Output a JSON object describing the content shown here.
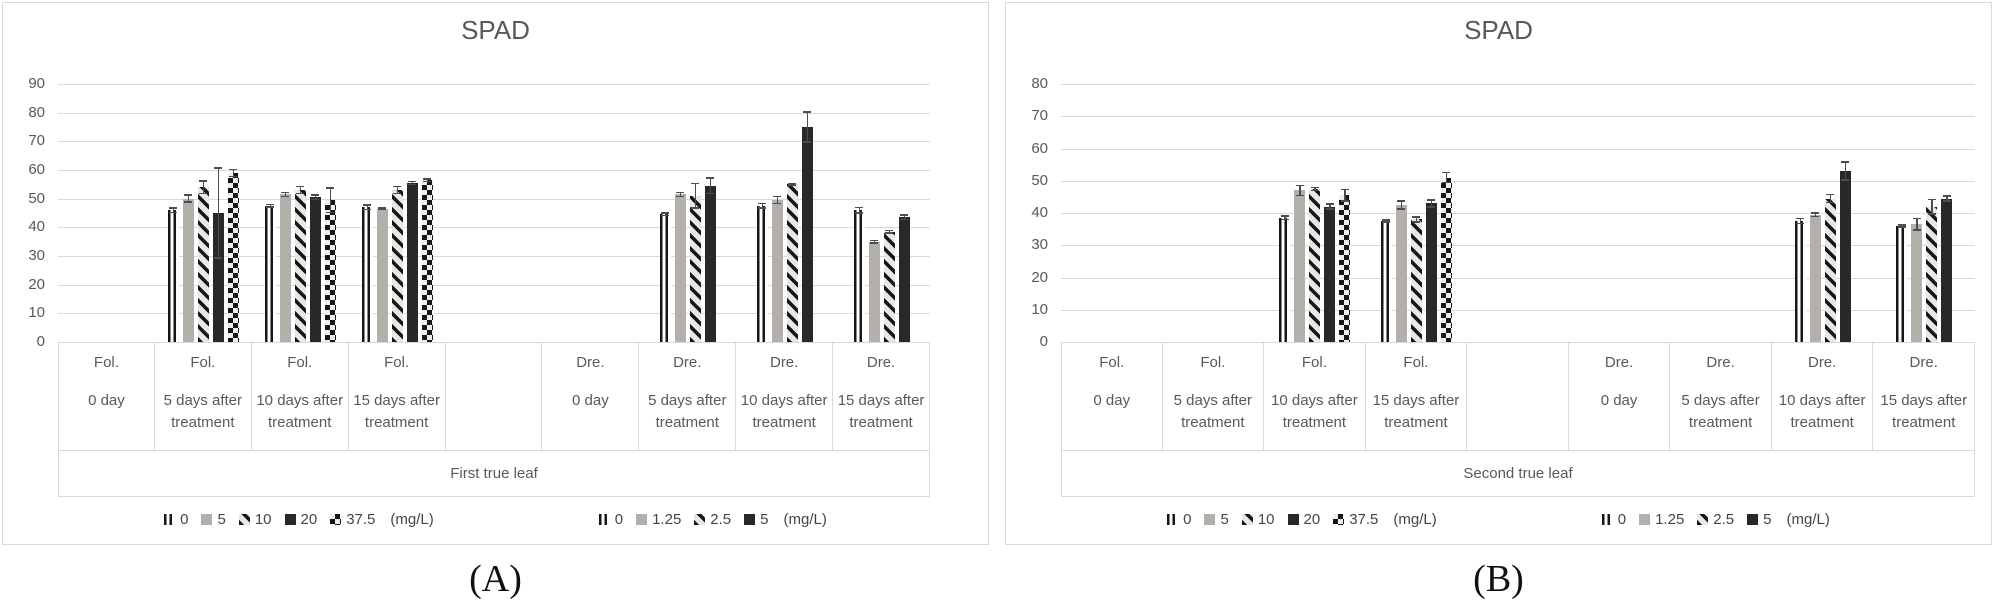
{
  "colors": {
    "background": "#ffffff",
    "frame_border": "#d9d9d9",
    "gridline": "#d9d9d9",
    "axis_text": "#595959",
    "legend_text": "#454545",
    "bar_gray": "#b3b0ac",
    "bar_black": "#282828",
    "pattern_dark": "#161616",
    "error_bar": "#4d4d4d"
  },
  "chart_data": [
    {
      "type": "bar",
      "title": "SPAD",
      "panel_label": "(A)",
      "axis_title": "First true leaf",
      "xlabel": "",
      "ylabel": "",
      "ylim": [
        0,
        90
      ],
      "yticks": [
        0,
        10,
        20,
        30,
        40,
        50,
        60,
        70,
        80,
        90
      ],
      "grid": true,
      "legend_position": "bottom",
      "legends": [
        {
          "name": "foliar-doses",
          "unit": "(mg/L)",
          "items": [
            {
              "label": "0",
              "pattern": "vstripe"
            },
            {
              "label": "5",
              "pattern": "gray"
            },
            {
              "label": "10",
              "pattern": "diag"
            },
            {
              "label": "20",
              "pattern": "black"
            },
            {
              "label": "37.5",
              "pattern": "checker"
            }
          ]
        },
        {
          "name": "drench-doses",
          "unit": "(mg/L)",
          "items": [
            {
              "label": "0",
              "pattern": "vstripe"
            },
            {
              "label": "1.25",
              "pattern": "gray"
            },
            {
              "label": "2.5",
              "pattern": "diag"
            },
            {
              "label": "5",
              "pattern": "black"
            }
          ]
        }
      ],
      "groups": [
        {
          "treatment": "Fol.",
          "day": "0 day",
          "legend": 0,
          "values": [],
          "errors": []
        },
        {
          "treatment": "Fol.",
          "day": "5 days after treatment",
          "legend": 0,
          "values": [
            46,
            50,
            54,
            45,
            59
          ],
          "errors": [
            1,
            1.5,
            2.5,
            16,
            1.5
          ]
        },
        {
          "treatment": "Fol.",
          "day": "10 days after treatment",
          "legend": 0,
          "values": [
            47.5,
            51.5,
            53,
            50.5,
            49.5
          ],
          "errors": [
            0.7,
            1,
            1.5,
            1,
            4.5
          ]
        },
        {
          "treatment": "Fol.",
          "day": "15 days after treatment",
          "legend": 0,
          "values": [
            47,
            46.5,
            53,
            55.5,
            56.5
          ],
          "errors": [
            1,
            0.5,
            1.5,
            0.8,
            0.7
          ]
        },
        {
          "treatment": "",
          "day": "",
          "legend": null,
          "values": [],
          "errors": []
        },
        {
          "treatment": "Dre.",
          "day": "0 day",
          "legend": 1,
          "values": [],
          "errors": []
        },
        {
          "treatment": "Dre.",
          "day": "5 days after treatment",
          "legend": 1,
          "values": [
            44.5,
            51.5,
            51,
            54.5
          ],
          "errors": [
            0.7,
            1,
            4.5,
            3
          ]
        },
        {
          "treatment": "Dre.",
          "day": "10 days after treatment",
          "legend": 1,
          "values": [
            47.5,
            49.5,
            55,
            75
          ],
          "errors": [
            1,
            1.5,
            0.5,
            5.5
          ]
        },
        {
          "treatment": "Dre.",
          "day": "15 days after treatment",
          "legend": 1,
          "values": [
            46,
            35,
            38.5,
            43.5
          ],
          "errors": [
            1.2,
            0.7,
            0.7,
            1
          ]
        }
      ]
    },
    {
      "type": "bar",
      "title": "SPAD",
      "panel_label": "(B)",
      "axis_title": "Second true leaf",
      "xlabel": "",
      "ylabel": "",
      "ylim": [
        0,
        80
      ],
      "yticks": [
        0,
        10,
        20,
        30,
        40,
        50,
        60,
        70,
        80
      ],
      "grid": true,
      "legend_position": "bottom",
      "legends": [
        {
          "name": "foliar-doses",
          "unit": "(mg/L)",
          "items": [
            {
              "label": "0",
              "pattern": "vstripe"
            },
            {
              "label": "5",
              "pattern": "gray"
            },
            {
              "label": "10",
              "pattern": "diag"
            },
            {
              "label": "20",
              "pattern": "black"
            },
            {
              "label": "37.5",
              "pattern": "checker"
            }
          ]
        },
        {
          "name": "drench-doses",
          "unit": "(mg/L)",
          "items": [
            {
              "label": "0",
              "pattern": "vstripe"
            },
            {
              "label": "1.25",
              "pattern": "gray"
            },
            {
              "label": "2.5",
              "pattern": "diag"
            },
            {
              "label": "5",
              "pattern": "black"
            }
          ]
        }
      ],
      "groups": [
        {
          "treatment": "Fol.",
          "day": "0 day",
          "legend": 0,
          "values": [],
          "errors": []
        },
        {
          "treatment": "Fol.",
          "day": "5 days after treatment",
          "legend": 0,
          "values": [],
          "errors": []
        },
        {
          "treatment": "Fol.",
          "day": "10 days after treatment",
          "legend": 0,
          "values": [
            38.5,
            47,
            47.5,
            42,
            45.5
          ],
          "errors": [
            0.8,
            1.8,
            0.7,
            1,
            2
          ]
        },
        {
          "treatment": "Fol.",
          "day": "15 days after treatment",
          "legend": 0,
          "values": [
            37.5,
            42.5,
            38,
            43,
            51
          ],
          "errors": [
            0.5,
            1.5,
            1,
            1.3,
            1.8
          ]
        },
        {
          "treatment": "",
          "day": "",
          "legend": null,
          "values": [],
          "errors": []
        },
        {
          "treatment": "Dre.",
          "day": "0 day",
          "legend": 1,
          "values": [],
          "errors": []
        },
        {
          "treatment": "Dre.",
          "day": "5 days after treatment",
          "legend": 1,
          "values": [],
          "errors": []
        },
        {
          "treatment": "Dre.",
          "day": "10 days after treatment",
          "legend": 1,
          "values": [
            37.5,
            39.5,
            44.5,
            53
          ],
          "errors": [
            1,
            0.8,
            1.5,
            3
          ]
        },
        {
          "treatment": "Dre.",
          "day": "15 days after treatment",
          "legend": 1,
          "values": [
            36,
            36.5,
            42,
            44.5
          ],
          "errors": [
            0.5,
            2,
            2.5,
            1
          ]
        }
      ]
    }
  ]
}
